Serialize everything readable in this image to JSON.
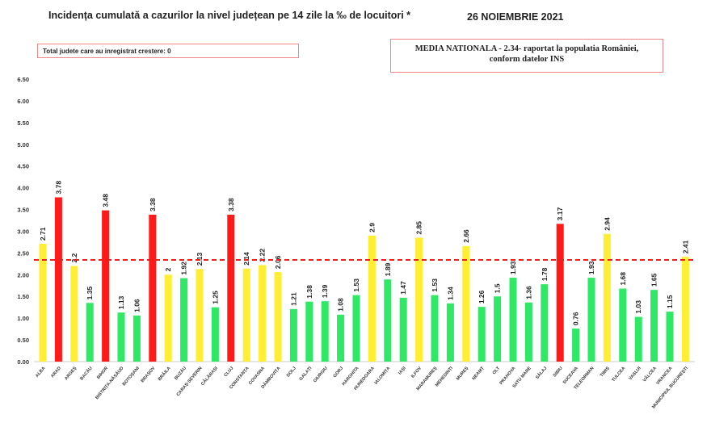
{
  "chart_data": {
    "type": "bar",
    "title": "Incidența cumulată a cazurilor la nivel județean pe 14 zile la ‰ de locuitori *",
    "date": "26 NOIEMBRIE 2021",
    "note_increase": "Total judete care au inregistrat crestere: 0",
    "national_average_line1": "MEDIA NATIONALA - 2.34-  raportat la populatia  României,",
    "national_average_line2": "conform datelor INS",
    "national_average": 2.34,
    "ylim": [
      0,
      6.5
    ],
    "yticks": [
      "0.00",
      "0.50",
      "1.00",
      "1.50",
      "2.00",
      "2.50",
      "3.00",
      "3.50",
      "4.00",
      "4.50",
      "5.00",
      "5.50",
      "6.00",
      "6.50"
    ],
    "categories": [
      "ALBA",
      "ARAD",
      "ARGEȘ",
      "BACĂU",
      "BIHOR",
      "BISTRIȚA-NĂSĂUD",
      "BOTOȘANI",
      "BRAȘOV",
      "BRĂILA",
      "BUZĂU",
      "CARAȘ-SEVERIN",
      "CĂLĂRAȘI",
      "CLUJ",
      "CONSTANȚA",
      "COVASNA",
      "DÂMBOVIȚA",
      "DOLJ",
      "GALAȚI",
      "GIURGIU",
      "GORJ",
      "HARGHITA",
      "HUNEDOARA",
      "IALOMIȚA",
      "IAȘI",
      "ILFOV",
      "MARAMUREȘ",
      "MEHEDINȚI",
      "MUREȘ",
      "NEAMȚ",
      "OLT",
      "PRAHOVA",
      "SATU MARE",
      "SĂLAJ",
      "SIBIU",
      "SUCEAVA",
      "TELEORMAN",
      "TIMIȘ",
      "TULCEA",
      "VASLUI",
      "VÂLCEA",
      "VRANCEA",
      "MUNICIPIUL BUCUREȘTI"
    ],
    "values": [
      2.71,
      3.78,
      2.2,
      1.35,
      3.48,
      1.13,
      1.06,
      3.38,
      2,
      1.92,
      2.13,
      1.25,
      3.38,
      2.14,
      2.22,
      2.06,
      1.21,
      1.38,
      1.39,
      1.08,
      1.53,
      2.9,
      1.89,
      1.47,
      2.85,
      1.53,
      1.34,
      2.66,
      1.26,
      1.5,
      1.93,
      1.36,
      1.78,
      3.17,
      0.76,
      1.93,
      2.94,
      1.68,
      1.03,
      1.65,
      1.15,
      2.41
    ],
    "levels": [
      "y",
      "r",
      "y",
      "g",
      "r",
      "g",
      "g",
      "r",
      "y",
      "g",
      "y",
      "g",
      "r",
      "y",
      "y",
      "y",
      "g",
      "g",
      "g",
      "g",
      "g",
      "y",
      "g",
      "g",
      "y",
      "g",
      "g",
      "y",
      "g",
      "g",
      "g",
      "g",
      "g",
      "r",
      "g",
      "g",
      "y",
      "g",
      "g",
      "g",
      "g",
      "y"
    ],
    "colors": {
      "r": "#ff1a1a",
      "y": "#ffee33",
      "g": "#2ee866",
      "line": "#e82020"
    }
  }
}
